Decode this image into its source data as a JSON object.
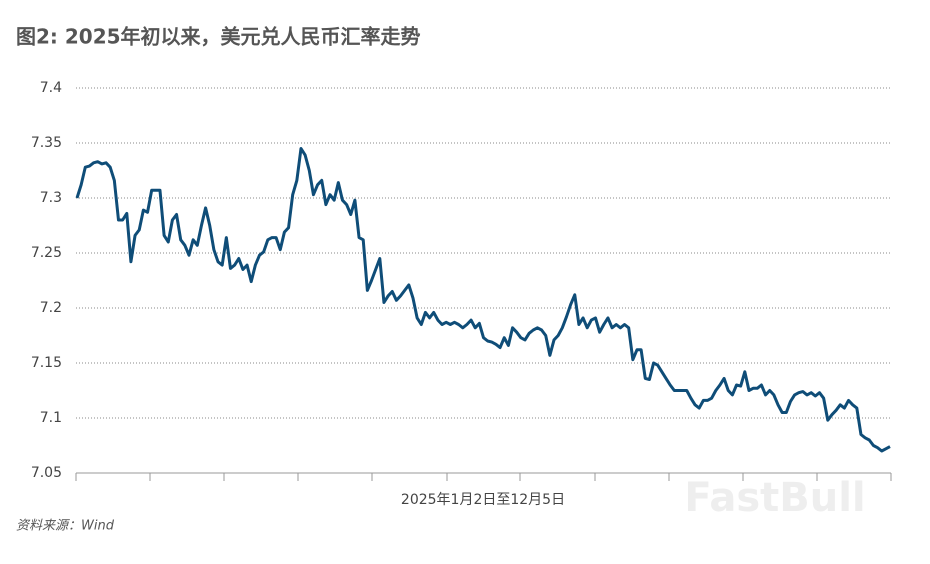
{
  "chart_data": {
    "type": "line",
    "title": "图2: 2025年初以来，美元兑人民币汇率走势",
    "x_label": "2025年1月2日至12月5日",
    "source": "资料来源：Wind",
    "watermark": "FastBull",
    "ylim": [
      7.05,
      7.4
    ],
    "yticks": [
      7.05,
      7.1,
      7.15,
      7.2,
      7.25,
      7.3,
      7.35,
      7.4
    ],
    "grid": true,
    "series": [
      {
        "name": "USD/CNY",
        "color": "#0f4d78",
        "values": [
          7.3,
          7.312,
          7.328,
          7.329,
          7.332,
          7.333,
          7.331,
          7.332,
          7.328,
          7.316,
          7.28,
          7.28,
          7.286,
          7.242,
          7.266,
          7.271,
          7.289,
          7.287,
          7.307,
          7.307,
          7.307,
          7.266,
          7.26,
          7.28,
          7.285,
          7.262,
          7.257,
          7.248,
          7.262,
          7.257,
          7.275,
          7.291,
          7.275,
          7.253,
          7.242,
          7.239,
          7.264,
          7.236,
          7.239,
          7.245,
          7.235,
          7.239,
          7.224,
          7.239,
          7.248,
          7.251,
          7.262,
          7.264,
          7.264,
          7.253,
          7.269,
          7.273,
          7.303,
          7.316,
          7.345,
          7.339,
          7.325,
          7.303,
          7.312,
          7.316,
          7.294,
          7.303,
          7.298,
          7.314,
          7.298,
          7.294,
          7.285,
          7.298,
          7.264,
          7.262,
          7.216,
          7.225,
          7.235,
          7.245,
          7.205,
          7.211,
          7.215,
          7.207,
          7.211,
          7.216,
          7.221,
          7.209,
          7.191,
          7.185,
          7.196,
          7.191,
          7.196,
          7.189,
          7.185,
          7.187,
          7.185,
          7.187,
          7.185,
          7.182,
          7.185,
          7.189,
          7.182,
          7.186,
          7.173,
          7.17,
          7.169,
          7.167,
          7.164,
          7.173,
          7.166,
          7.182,
          7.178,
          7.173,
          7.171,
          7.177,
          7.18,
          7.182,
          7.18,
          7.175,
          7.157,
          7.171,
          7.175,
          7.182,
          7.192,
          7.203,
          7.212,
          7.185,
          7.191,
          7.182,
          7.189,
          7.191,
          7.178,
          7.185,
          7.191,
          7.182,
          7.185,
          7.182,
          7.185,
          7.182,
          7.153,
          7.162,
          7.162,
          7.136,
          7.135,
          7.15,
          7.148,
          7.142,
          7.136,
          7.13,
          7.125,
          7.125,
          7.125,
          7.125,
          7.118,
          7.112,
          7.109,
          7.116,
          7.116,
          7.118,
          7.125,
          7.13,
          7.136,
          7.125,
          7.121,
          7.13,
          7.129,
          7.142,
          7.125,
          7.127,
          7.127,
          7.13,
          7.121,
          7.125,
          7.121,
          7.112,
          7.105,
          7.105,
          7.115,
          7.121,
          7.123,
          7.124,
          7.121,
          7.123,
          7.12,
          7.123,
          7.118,
          7.098,
          7.103,
          7.107,
          7.112,
          7.109,
          7.116,
          7.112,
          7.109,
          7.085,
          7.082,
          7.08,
          7.075,
          7.073,
          7.07,
          7.072,
          7.074
        ]
      }
    ]
  }
}
